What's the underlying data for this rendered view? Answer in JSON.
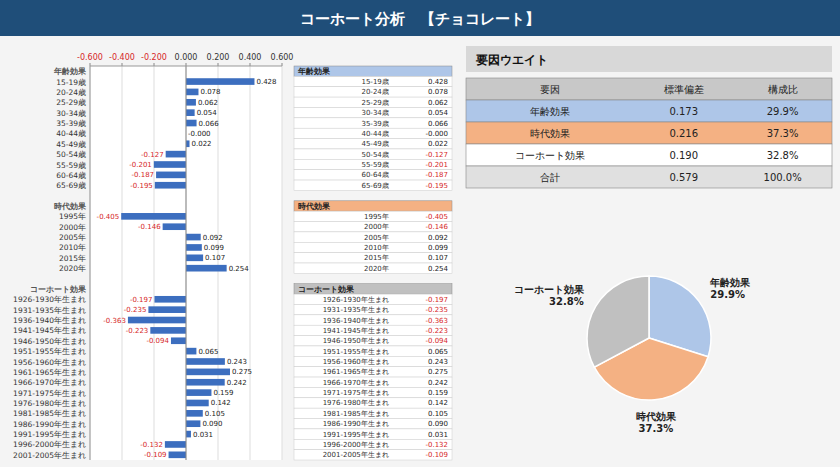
{
  "chart_data": [
    {
      "type": "bar",
      "orientation": "horizontal",
      "title": "コーホート分析　【チョコレート】",
      "categories": [
        "年齢効果",
        "15-19歳",
        "20-24歳",
        "25-29歳",
        "30-34歳",
        "35-39歳",
        "40-44歳",
        "45-49歳",
        "50-54歳",
        "55-59歳",
        "60-64歳",
        "65-69歳",
        null,
        "時代効果",
        "1995年",
        "2000年",
        "2005年",
        "2010年",
        "2015年",
        "2020年",
        null,
        "コーホート効果",
        "1926-1930年生まれ",
        "1931-1935年生まれ",
        "1936-1940年生まれ",
        "1941-1945年生まれ",
        "1946-1950年生まれ",
        "1951-1955年生まれ",
        "1956-1960年生まれ",
        "1961-1965年生まれ",
        "1966-1970年生まれ",
        "1971-1975年生まれ",
        "1976-1980年生まれ",
        "1981-1985年生まれ",
        "1986-1990年生まれ",
        "1991-1995年生まれ",
        "1996-2000年生まれ",
        "2001-2005年生まれ"
      ],
      "values": [
        null,
        0.428,
        0.078,
        0.062,
        0.054,
        0.066,
        -0.0,
        0.022,
        -0.127,
        -0.201,
        -0.187,
        -0.195,
        null,
        null,
        -0.405,
        -0.146,
        0.092,
        0.099,
        0.107,
        0.254,
        null,
        null,
        -0.197,
        -0.235,
        -0.363,
        -0.223,
        -0.094,
        0.065,
        0.243,
        0.275,
        0.242,
        0.159,
        0.142,
        0.105,
        0.09,
        0.031,
        -0.132,
        -0.109
      ],
      "value_labels": [
        null,
        "0.428",
        "0.078",
        "0.062",
        "0.054",
        "0.066",
        "-0.000",
        "0.022",
        "-0.127",
        "-0.201",
        "-0.187",
        "-0.195",
        null,
        null,
        "-0.405",
        "-0.146",
        "0.092",
        "0.099",
        "0.107",
        "0.254",
        null,
        null,
        "-0.197",
        "-0.235",
        "-0.363",
        "-0.223",
        "-0.094",
        "0.065",
        "0.243",
        "0.275",
        "0.242",
        "0.159",
        "0.142",
        "0.105",
        "0.090",
        "0.031",
        "-0.132",
        "-0.109"
      ],
      "color": "#3c6ebf",
      "xlim": [
        -0.6,
        0.6
      ],
      "xticks": [
        {
          "value": -0.6,
          "label": "-0.600"
        },
        {
          "value": -0.4,
          "label": "-0.400"
        },
        {
          "value": -0.2,
          "label": "-0.200"
        },
        {
          "value": 0,
          "label": "0.000"
        },
        {
          "value": 0.2,
          "label": "0.200"
        },
        {
          "value": 0.4,
          "label": "0.400"
        },
        {
          "value": 0.6,
          "label": "0.600"
        }
      ],
      "grid": true,
      "data_labels": true
    },
    {
      "type": "table",
      "title": "要因ウエイト",
      "columns": [
        "要因",
        "標準偏差",
        "構成比"
      ],
      "rows": [
        [
          "年齢効果",
          "0.173",
          "29.9%"
        ],
        [
          "時代効果",
          "0.216",
          "37.3%"
        ],
        [
          "コーホート効果",
          "0.190",
          "32.8%"
        ],
        [
          "合計",
          "0.579",
          "100.0%"
        ]
      ],
      "colors": [
        "#aec6e8",
        "#f4b183",
        "#ffffff",
        "#e0e0e0"
      ]
    },
    {
      "type": "pie",
      "categories": [
        "年齢効果",
        "時代効果",
        "コーホート効果"
      ],
      "values": [
        29.9,
        37.3,
        32.8
      ],
      "value_labels": [
        "29.9%",
        "37.3%",
        "32.8%"
      ],
      "colors": [
        "#aec6e8",
        "#f4b183",
        "#c0c0c0"
      ],
      "data_labels": true
    }
  ]
}
